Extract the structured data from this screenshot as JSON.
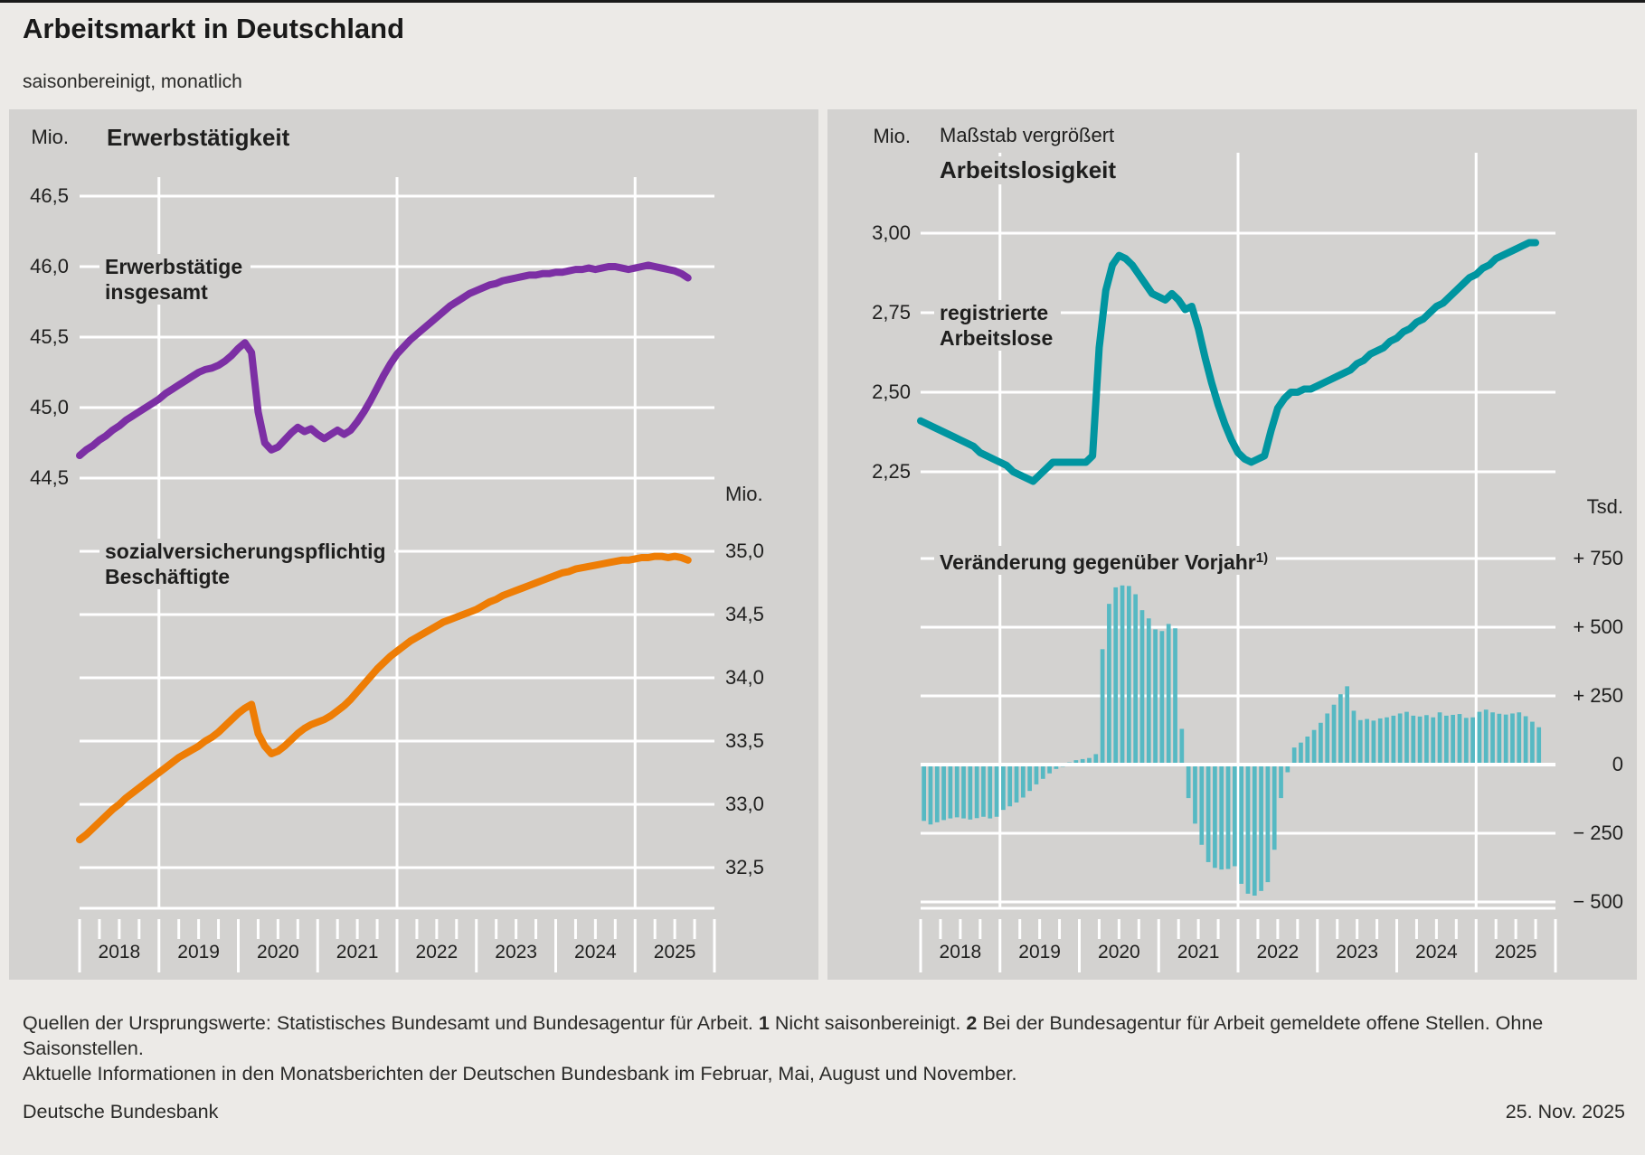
{
  "header": {
    "title": "Arbeitsmarkt in Deutschland",
    "subtitle": "saisonbereinigt, monatlich"
  },
  "timeline": {
    "years": [
      "2018",
      "2019",
      "2020",
      "2021",
      "2022",
      "2023",
      "2024",
      "2025"
    ]
  },
  "left_panel": {
    "unit_top": "Mio.",
    "unit_right": "Mio.",
    "title": "Erwerbstätigkeit",
    "series1": [
      "Erwerbstätige",
      "insgesamt"
    ],
    "series2": [
      "sozialversicherungspflichtig",
      "Beschäftigte"
    ]
  },
  "right_panel": {
    "unit_top": "Mio.",
    "unit_right": "Tsd.",
    "scale_note": "Maßstab vergrößert",
    "title": "Arbeitslosigkeit",
    "series1": [
      "registrierte",
      "Arbeitslose"
    ],
    "series2_label": "Veränderung gegenüber Vorjahr",
    "series2_sup": "1)"
  },
  "footer": {
    "source_text": "Quellen der Ursprungswerte: Statistisches Bundesamt und Bundesagentur für Arbeit.",
    "fn1_marker": "1",
    "fn1_text": "Nicht saisonbereinigt.",
    "fn2_marker": "2",
    "fn2_text": "Bei der Bundesagentur für Arbeit gemeldete offene Stellen. Ohne Saisonstellen.",
    "info_text": "Aktuelle Informationen in den Monatsberichten der Deutschen Bundesbank im Februar, Mai, August und November.",
    "publisher": "Deutsche Bundesbank",
    "date": "25. Nov. 2025"
  },
  "colors": {
    "employed_total": "#7c2fa4",
    "sv_employed": "#ee7d05",
    "unemployed": "#0095a0",
    "yoy_bars": "#56b9c3",
    "panel_bg": "#d3d2d0",
    "page_bg": "#eceae7",
    "grid": "#ffffff"
  },
  "chart_data": [
    {
      "id": "employed-total",
      "type": "line",
      "title": "Erwerbstätigkeit",
      "series_label": "Erwerbstätige insgesamt",
      "unit": "Mio.",
      "color": "#7c2fa4",
      "freq": "monthly",
      "x_start": "2018-01",
      "x_end": "2025-09",
      "ylim": [
        44.5,
        46.5
      ],
      "yticks": [
        {
          "value": 46.5,
          "label": "46,5"
        },
        {
          "value": 46.0,
          "label": "46,0"
        },
        {
          "value": 45.5,
          "label": "45,5"
        },
        {
          "value": 45.0,
          "label": "45,0"
        },
        {
          "value": 44.5,
          "label": "44,5"
        }
      ],
      "values": [
        44.66,
        44.7,
        44.73,
        44.77,
        44.8,
        44.84,
        44.87,
        44.91,
        44.94,
        44.97,
        45.0,
        45.03,
        45.06,
        45.1,
        45.13,
        45.16,
        45.19,
        45.22,
        45.25,
        45.27,
        45.28,
        45.3,
        45.33,
        45.37,
        45.42,
        45.46,
        45.39,
        44.97,
        44.75,
        44.7,
        44.72,
        44.77,
        44.82,
        44.86,
        44.83,
        44.85,
        44.81,
        44.78,
        44.81,
        44.84,
        44.81,
        44.84,
        44.9,
        44.97,
        45.05,
        45.14,
        45.23,
        45.31,
        45.38,
        45.43,
        45.48,
        45.52,
        45.56,
        45.6,
        45.64,
        45.68,
        45.72,
        45.75,
        45.78,
        45.81,
        45.83,
        45.85,
        45.87,
        45.88,
        45.9,
        45.91,
        45.92,
        45.93,
        45.94,
        45.94,
        45.95,
        45.95,
        45.96,
        45.96,
        45.97,
        45.98,
        45.98,
        45.99,
        45.98,
        45.99,
        46.0,
        46.0,
        45.99,
        45.98,
        45.99,
        46.0,
        46.01,
        46.0,
        45.99,
        45.98,
        45.97,
        45.95,
        45.92
      ]
    },
    {
      "id": "sv-employed",
      "type": "line",
      "series_label": "sozialversicherungspflichtig Beschäftigte",
      "unit": "Mio.",
      "color": "#ee7d05",
      "freq": "monthly",
      "x_start": "2018-01",
      "x_end": "2025-09",
      "ylim": [
        32.5,
        35.0
      ],
      "yticks": [
        {
          "value": 35.0,
          "label": "35,0"
        },
        {
          "value": 34.5,
          "label": "34,5"
        },
        {
          "value": 34.0,
          "label": "34,0"
        },
        {
          "value": 33.5,
          "label": "33,5"
        },
        {
          "value": 33.0,
          "label": "33,0"
        },
        {
          "value": 32.5,
          "label": "32,5"
        }
      ],
      "values": [
        32.72,
        32.76,
        32.81,
        32.86,
        32.91,
        32.96,
        33.0,
        33.05,
        33.09,
        33.13,
        33.17,
        33.21,
        33.25,
        33.29,
        33.33,
        33.37,
        33.4,
        33.43,
        33.46,
        33.5,
        33.53,
        33.57,
        33.62,
        33.67,
        33.72,
        33.76,
        33.79,
        33.56,
        33.46,
        33.4,
        33.42,
        33.46,
        33.51,
        33.56,
        33.6,
        33.63,
        33.65,
        33.67,
        33.7,
        33.74,
        33.78,
        33.83,
        33.89,
        33.95,
        34.01,
        34.07,
        34.12,
        34.17,
        34.21,
        34.25,
        34.29,
        34.32,
        34.35,
        34.38,
        34.41,
        34.44,
        34.46,
        34.48,
        34.5,
        34.52,
        34.54,
        34.57,
        34.6,
        34.62,
        34.65,
        34.67,
        34.69,
        34.71,
        34.73,
        34.75,
        34.77,
        34.79,
        34.81,
        34.83,
        34.84,
        34.86,
        34.87,
        34.88,
        34.89,
        34.9,
        34.91,
        34.92,
        34.93,
        34.93,
        34.94,
        34.95,
        34.95,
        34.96,
        34.96,
        34.95,
        34.96,
        34.95,
        34.93
      ]
    },
    {
      "id": "registered-unemployed",
      "type": "line",
      "scale_note": "Maßstab vergrößert",
      "title": "Arbeitslosigkeit",
      "series_label": "registrierte Arbeitslose",
      "unit": "Mio.",
      "color": "#0095a0",
      "freq": "monthly",
      "x_start": "2018-01",
      "x_end": "2025-10",
      "ylim": [
        2.25,
        3.0
      ],
      "yticks": [
        {
          "value": 3.0,
          "label": "3,00"
        },
        {
          "value": 2.75,
          "label": "2,75"
        },
        {
          "value": 2.5,
          "label": "2,50"
        },
        {
          "value": 2.25,
          "label": "2,25"
        }
      ],
      "values": [
        2.41,
        2.4,
        2.39,
        2.38,
        2.37,
        2.36,
        2.35,
        2.34,
        2.33,
        2.31,
        2.3,
        2.29,
        2.28,
        2.27,
        2.25,
        2.24,
        2.23,
        2.22,
        2.24,
        2.26,
        2.28,
        2.28,
        2.28,
        2.28,
        2.28,
        2.28,
        2.3,
        2.64,
        2.82,
        2.9,
        2.93,
        2.92,
        2.9,
        2.87,
        2.84,
        2.81,
        2.8,
        2.79,
        2.81,
        2.79,
        2.76,
        2.77,
        2.7,
        2.61,
        2.53,
        2.46,
        2.4,
        2.35,
        2.31,
        2.29,
        2.28,
        2.29,
        2.3,
        2.38,
        2.45,
        2.48,
        2.5,
        2.5,
        2.51,
        2.51,
        2.52,
        2.53,
        2.54,
        2.55,
        2.56,
        2.57,
        2.59,
        2.6,
        2.62,
        2.63,
        2.64,
        2.66,
        2.67,
        2.69,
        2.7,
        2.72,
        2.73,
        2.75,
        2.77,
        2.78,
        2.8,
        2.82,
        2.84,
        2.86,
        2.87,
        2.89,
        2.9,
        2.92,
        2.93,
        2.94,
        2.95,
        2.96,
        2.97,
        2.97
      ]
    },
    {
      "id": "unemployed-yoy-change",
      "type": "bar",
      "series_label": "Veränderung gegenüber Vorjahr",
      "footnote_sup": "1)",
      "footnote": "Nicht saisonbereinigt.",
      "unit": "Tsd.",
      "color": "#56b9c3",
      "freq": "monthly",
      "x_start": "2018-01",
      "x_end": "2025-10",
      "ylim": [
        -500,
        750
      ],
      "yticks": [
        {
          "value": 750,
          "label": "+ 750"
        },
        {
          "value": 500,
          "label": "+ 500"
        },
        {
          "value": 250,
          "label": "+ 250"
        },
        {
          "value": 0,
          "label": "0"
        },
        {
          "value": -250,
          "label": "− 250"
        },
        {
          "value": -500,
          "label": "− 500"
        }
      ],
      "values": [
        -205,
        -218,
        -210,
        -202,
        -196,
        -192,
        -196,
        -200,
        -195,
        -190,
        -196,
        -190,
        -165,
        -152,
        -138,
        -120,
        -96,
        -72,
        -52,
        -32,
        -16,
        -8,
        8,
        16,
        20,
        24,
        38,
        420,
        585,
        645,
        652,
        650,
        620,
        562,
        532,
        492,
        486,
        512,
        496,
        130,
        -122,
        -215,
        -292,
        -355,
        -376,
        -382,
        -380,
        -370,
        -434,
        -470,
        -477,
        -460,
        -428,
        -310,
        -122,
        -28,
        62,
        80,
        102,
        126,
        152,
        186,
        218,
        256,
        285,
        196,
        162,
        166,
        160,
        168,
        172,
        178,
        186,
        192,
        178,
        175,
        180,
        172,
        190,
        178,
        181,
        184,
        170,
        172,
        192,
        200,
        190,
        185,
        182,
        186,
        190,
        176,
        156,
        136
      ]
    }
  ]
}
